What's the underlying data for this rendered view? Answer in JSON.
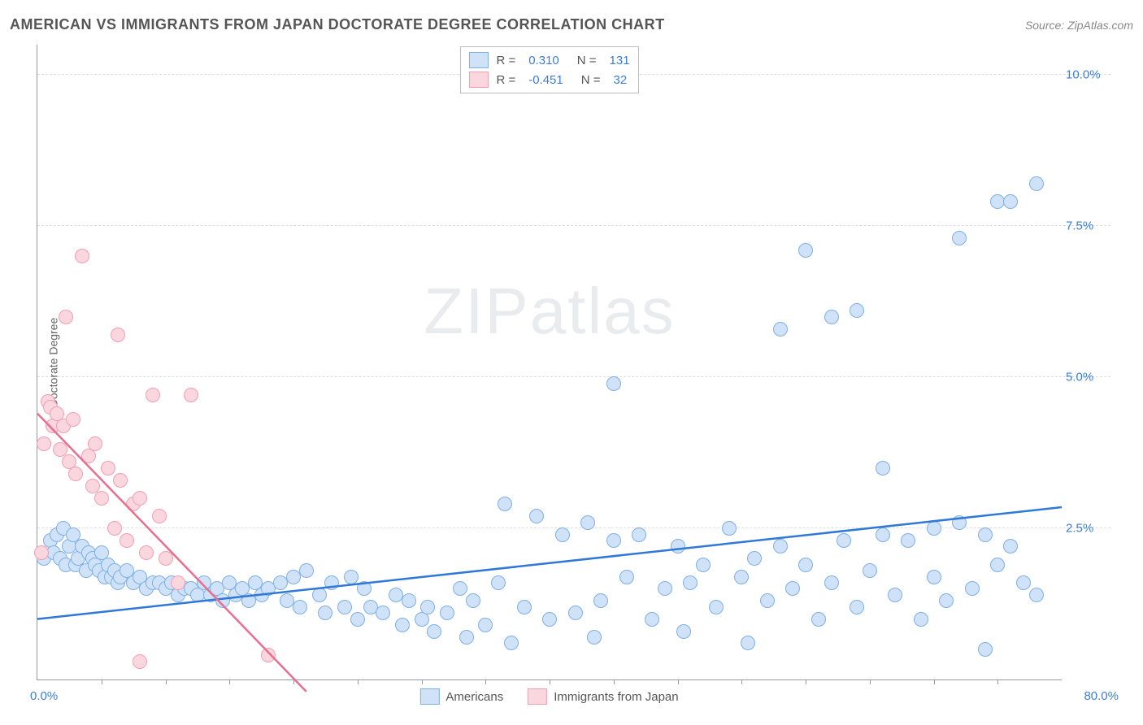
{
  "header": {
    "title": "AMERICAN VS IMMIGRANTS FROM JAPAN DOCTORATE DEGREE CORRELATION CHART",
    "source": "Source: ZipAtlas.com"
  },
  "watermark": {
    "zip": "ZIP",
    "atlas": "atlas"
  },
  "chart": {
    "type": "scatter",
    "y_axis_label": "Doctorate Degree",
    "xlim": [
      0,
      80
    ],
    "ylim": [
      0,
      10.5
    ],
    "x_start_label": "0.0%",
    "x_end_label": "80.0%",
    "x_tick_positions": [
      5,
      10,
      15,
      20,
      25,
      30,
      35,
      40,
      45,
      50,
      55,
      60,
      65,
      70,
      75
    ],
    "y_ticks": [
      {
        "v": 2.5,
        "label": "2.5%"
      },
      {
        "v": 5.0,
        "label": "5.0%"
      },
      {
        "v": 7.5,
        "label": "7.5%"
      },
      {
        "v": 10.0,
        "label": "10.0%"
      }
    ],
    "marker_radius": 9,
    "marker_stroke_width": 1.5,
    "background_color": "#ffffff",
    "grid_color": "#dddddd",
    "series": [
      {
        "name": "Americans",
        "fill": "#cfe2f7",
        "stroke": "#7fb0e5",
        "trend_color": "#2f78d7",
        "r_label": "R =",
        "r_value": "0.310",
        "n_label": "N =",
        "n_value": "131",
        "trendline": {
          "x1": 0,
          "y1": 1.0,
          "x2": 80,
          "y2": 2.85
        },
        "points": [
          [
            0.5,
            2.0
          ],
          [
            1,
            2.3
          ],
          [
            1.3,
            2.1
          ],
          [
            1.5,
            2.4
          ],
          [
            1.8,
            2.0
          ],
          [
            2,
            2.5
          ],
          [
            2.2,
            1.9
          ],
          [
            2.5,
            2.2
          ],
          [
            2.8,
            2.4
          ],
          [
            3,
            1.9
          ],
          [
            3.2,
            2.0
          ],
          [
            3.5,
            2.2
          ],
          [
            3.8,
            1.8
          ],
          [
            4,
            2.1
          ],
          [
            4.3,
            2.0
          ],
          [
            4.5,
            1.9
          ],
          [
            4.8,
            1.8
          ],
          [
            5,
            2.1
          ],
          [
            5.3,
            1.7
          ],
          [
            5.5,
            1.9
          ],
          [
            5.8,
            1.7
          ],
          [
            6,
            1.8
          ],
          [
            6.3,
            1.6
          ],
          [
            6.5,
            1.7
          ],
          [
            7,
            1.8
          ],
          [
            7.5,
            1.6
          ],
          [
            8,
            1.7
          ],
          [
            8.5,
            1.5
          ],
          [
            9,
            1.6
          ],
          [
            9.5,
            1.6
          ],
          [
            10,
            1.5
          ],
          [
            10.5,
            1.6
          ],
          [
            11,
            1.4
          ],
          [
            11.5,
            1.5
          ],
          [
            12,
            1.5
          ],
          [
            12.5,
            1.4
          ],
          [
            13,
            1.6
          ],
          [
            13.5,
            1.4
          ],
          [
            14,
            1.5
          ],
          [
            14.5,
            1.3
          ],
          [
            15,
            1.6
          ],
          [
            15.5,
            1.4
          ],
          [
            16,
            1.5
          ],
          [
            16.5,
            1.3
          ],
          [
            17,
            1.6
          ],
          [
            17.5,
            1.4
          ],
          [
            18,
            1.5
          ],
          [
            19,
            1.6
          ],
          [
            19.5,
            1.3
          ],
          [
            20,
            1.7
          ],
          [
            20.5,
            1.2
          ],
          [
            21,
            1.8
          ],
          [
            22,
            1.4
          ],
          [
            22.5,
            1.1
          ],
          [
            23,
            1.6
          ],
          [
            24,
            1.2
          ],
          [
            24.5,
            1.7
          ],
          [
            25,
            1.0
          ],
          [
            25.5,
            1.5
          ],
          [
            26,
            1.2
          ],
          [
            27,
            1.1
          ],
          [
            28,
            1.4
          ],
          [
            28.5,
            0.9
          ],
          [
            29,
            1.3
          ],
          [
            30,
            1.0
          ],
          [
            30.5,
            1.2
          ],
          [
            31,
            0.8
          ],
          [
            32,
            1.1
          ],
          [
            33,
            1.5
          ],
          [
            33.5,
            0.7
          ],
          [
            34,
            1.3
          ],
          [
            35,
            0.9
          ],
          [
            36,
            1.6
          ],
          [
            36.5,
            2.9
          ],
          [
            37,
            0.6
          ],
          [
            38,
            1.2
          ],
          [
            39,
            2.7
          ],
          [
            40,
            1.0
          ],
          [
            41,
            2.4
          ],
          [
            42,
            1.1
          ],
          [
            43,
            2.6
          ],
          [
            43.5,
            0.7
          ],
          [
            44,
            1.3
          ],
          [
            45,
            2.3
          ],
          [
            45,
            4.9
          ],
          [
            46,
            1.7
          ],
          [
            47,
            2.4
          ],
          [
            48,
            1.0
          ],
          [
            49,
            1.5
          ],
          [
            50,
            2.2
          ],
          [
            50.5,
            0.8
          ],
          [
            51,
            1.6
          ],
          [
            52,
            1.9
          ],
          [
            53,
            1.2
          ],
          [
            54,
            2.5
          ],
          [
            55,
            1.7
          ],
          [
            55.5,
            0.6
          ],
          [
            56,
            2.0
          ],
          [
            57,
            1.3
          ],
          [
            58,
            2.2
          ],
          [
            58,
            5.8
          ],
          [
            59,
            1.5
          ],
          [
            60,
            7.1
          ],
          [
            60,
            1.9
          ],
          [
            61,
            1.0
          ],
          [
            62,
            6.0
          ],
          [
            62,
            1.6
          ],
          [
            63,
            2.3
          ],
          [
            64,
            6.1
          ],
          [
            64,
            1.2
          ],
          [
            65,
            1.8
          ],
          [
            66,
            2.4
          ],
          [
            66,
            3.5
          ],
          [
            67,
            1.4
          ],
          [
            68,
            2.3
          ],
          [
            69,
            1.0
          ],
          [
            70,
            2.5
          ],
          [
            70,
            1.7
          ],
          [
            71,
            1.3
          ],
          [
            72,
            2.6
          ],
          [
            72,
            7.3
          ],
          [
            73,
            1.5
          ],
          [
            74,
            2.4
          ],
          [
            74,
            0.5
          ],
          [
            75,
            7.9
          ],
          [
            75,
            1.9
          ],
          [
            76,
            7.9
          ],
          [
            76,
            2.2
          ],
          [
            77,
            1.6
          ],
          [
            78,
            8.2
          ],
          [
            78,
            1.4
          ]
        ]
      },
      {
        "name": "Immigrants from Japan",
        "fill": "#fad7df",
        "stroke": "#f19eb3",
        "trend_color": "#e86f8f",
        "r_label": "R =",
        "r_value": "-0.451",
        "n_label": "N =",
        "n_value": "32",
        "trendline": {
          "x1": 0,
          "y1": 4.4,
          "x2": 21,
          "y2": -0.2
        },
        "points": [
          [
            0.3,
            2.1
          ],
          [
            0.5,
            3.9
          ],
          [
            0.8,
            4.6
          ],
          [
            1,
            4.5
          ],
          [
            1.2,
            4.2
          ],
          [
            1.5,
            4.4
          ],
          [
            1.8,
            3.8
          ],
          [
            2,
            4.2
          ],
          [
            2.2,
            6.0
          ],
          [
            2.5,
            3.6
          ],
          [
            2.8,
            4.3
          ],
          [
            3,
            3.4
          ],
          [
            3.5,
            7.0
          ],
          [
            4,
            3.7
          ],
          [
            4.3,
            3.2
          ],
          [
            4.5,
            3.9
          ],
          [
            5,
            3.0
          ],
          [
            5.5,
            3.5
          ],
          [
            6,
            2.5
          ],
          [
            6.3,
            5.7
          ],
          [
            6.5,
            3.3
          ],
          [
            7,
            2.3
          ],
          [
            7.5,
            2.9
          ],
          [
            8,
            3.0
          ],
          [
            8.5,
            2.1
          ],
          [
            9,
            4.7
          ],
          [
            9.5,
            2.7
          ],
          [
            10,
            2.0
          ],
          [
            11,
            1.6
          ],
          [
            12,
            4.7
          ],
          [
            8,
            0.3
          ],
          [
            18,
            0.4
          ]
        ]
      }
    ],
    "legend_bottom": [
      {
        "label": "Americans",
        "fill": "#cfe2f7",
        "stroke": "#7fb0e5"
      },
      {
        "label": "Immigrants from Japan",
        "fill": "#fad7df",
        "stroke": "#f19eb3"
      }
    ]
  }
}
